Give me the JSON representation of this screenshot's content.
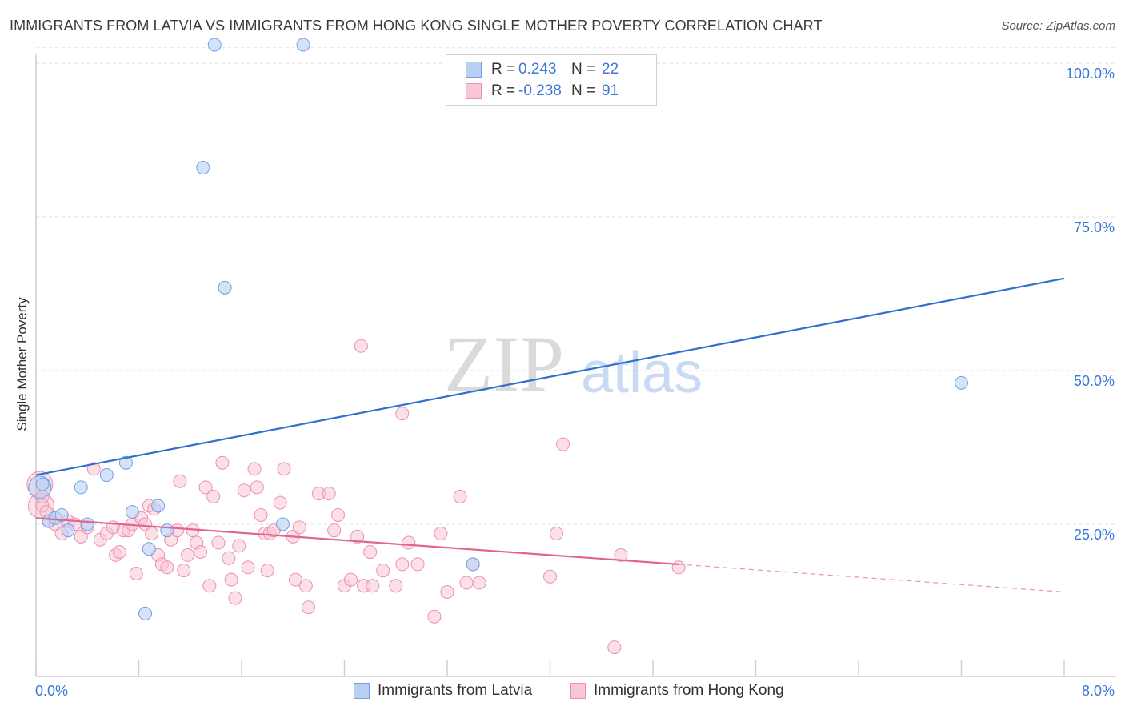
{
  "title": "IMMIGRANTS FROM LATVIA VS IMMIGRANTS FROM HONG KONG SINGLE MOTHER POVERTY CORRELATION CHART",
  "source": "Source: ZipAtlas.com",
  "watermark": {
    "zip": "ZIP",
    "atlas": "atlas"
  },
  "legend": {
    "rows": [
      {
        "r_label": "R =",
        "r_value": "0.243",
        "n_label": "N =",
        "n_value": "22"
      },
      {
        "r_label": "R =",
        "r_value": "-0.238",
        "n_label": "N =",
        "n_value": "91"
      }
    ]
  },
  "chart_data": {
    "type": "scatter",
    "ylabel": "Single Mother Poverty",
    "xlim": [
      0,
      8
    ],
    "ylim": [
      0,
      105
    ],
    "x_tick_labels": [
      "0.0%",
      "8.0%"
    ],
    "y_ticks": [
      25,
      50,
      75,
      100
    ],
    "y_tick_labels": [
      "25.0%",
      "50.0%",
      "75.0%",
      "100.0%"
    ],
    "grid": true,
    "legend_position": "top-center",
    "colors": {
      "latvia": "#6fa0e6",
      "latvia_line": "#2f6fce",
      "hongkong": "#ef8fb0",
      "hongkong_line": "#e0648f"
    },
    "series": [
      {
        "name": "Immigrants from Latvia",
        "trend": {
          "x": [
            0,
            8
          ],
          "y": [
            33,
            65
          ]
        },
        "points": [
          [
            0.05,
            31.5
          ],
          [
            0.1,
            25.5
          ],
          [
            0.15,
            26
          ],
          [
            0.2,
            26.5
          ],
          [
            0.25,
            24
          ],
          [
            0.35,
            31
          ],
          [
            0.4,
            25
          ],
          [
            0.55,
            33
          ],
          [
            0.7,
            35
          ],
          [
            0.75,
            27
          ],
          [
            0.85,
            10.5
          ],
          [
            0.88,
            21
          ],
          [
            0.95,
            28
          ],
          [
            1.02,
            24
          ],
          [
            1.3,
            83
          ],
          [
            1.39,
            103
          ],
          [
            1.47,
            63.5
          ],
          [
            1.92,
            25
          ],
          [
            2.08,
            103
          ],
          [
            3.4,
            18.5
          ],
          [
            7.2,
            48
          ]
        ],
        "big_points": [
          [
            0.03,
            31
          ]
        ]
      },
      {
        "name": "Immigrants from Hong Kong",
        "trend": {
          "x": [
            0,
            5
          ],
          "y": [
            26,
            18.5
          ]
        },
        "trend_ext": {
          "x": [
            5,
            8
          ],
          "y": [
            18.5,
            14
          ]
        },
        "points": [
          [
            0.05,
            28
          ],
          [
            0.1,
            25.5
          ],
          [
            0.15,
            25
          ],
          [
            0.2,
            23.5
          ],
          [
            0.25,
            25.5
          ],
          [
            0.3,
            25
          ],
          [
            0.35,
            23
          ],
          [
            0.4,
            24.5
          ],
          [
            0.45,
            34
          ],
          [
            0.5,
            22.5
          ],
          [
            0.55,
            23.5
          ],
          [
            0.6,
            24.5
          ],
          [
            0.62,
            20
          ],
          [
            0.65,
            20.5
          ],
          [
            0.68,
            24
          ],
          [
            0.72,
            24
          ],
          [
            0.75,
            25
          ],
          [
            0.78,
            17
          ],
          [
            0.82,
            26
          ],
          [
            0.85,
            25
          ],
          [
            0.88,
            28
          ],
          [
            0.9,
            23.5
          ],
          [
            0.92,
            27.5
          ],
          [
            0.95,
            20
          ],
          [
            0.98,
            18.5
          ],
          [
            1.02,
            18
          ],
          [
            1.05,
            22.5
          ],
          [
            1.1,
            24
          ],
          [
            1.12,
            32
          ],
          [
            1.15,
            17.5
          ],
          [
            1.18,
            20
          ],
          [
            1.22,
            24
          ],
          [
            1.25,
            22
          ],
          [
            1.28,
            20.5
          ],
          [
            1.32,
            31
          ],
          [
            1.35,
            15
          ],
          [
            1.38,
            29.5
          ],
          [
            1.42,
            22
          ],
          [
            1.45,
            35
          ],
          [
            1.5,
            19.5
          ],
          [
            1.52,
            16
          ],
          [
            1.55,
            13
          ],
          [
            1.58,
            21.5
          ],
          [
            1.62,
            30.5
          ],
          [
            1.65,
            18
          ],
          [
            1.7,
            34
          ],
          [
            1.72,
            31
          ],
          [
            1.75,
            26.5
          ],
          [
            1.78,
            23.5
          ],
          [
            1.8,
            17.5
          ],
          [
            1.82,
            23.5
          ],
          [
            1.85,
            24
          ],
          [
            1.9,
            28.5
          ],
          [
            1.93,
            34
          ],
          [
            2.0,
            23
          ],
          [
            2.02,
            16
          ],
          [
            2.05,
            24.5
          ],
          [
            2.1,
            15
          ],
          [
            2.12,
            11.5
          ],
          [
            2.2,
            30
          ],
          [
            2.28,
            30
          ],
          [
            2.32,
            24
          ],
          [
            2.35,
            26.5
          ],
          [
            2.4,
            15
          ],
          [
            2.45,
            16
          ],
          [
            2.5,
            23
          ],
          [
            2.55,
            15
          ],
          [
            2.6,
            20.5
          ],
          [
            2.62,
            15
          ],
          [
            2.7,
            17.5
          ],
          [
            2.8,
            15
          ],
          [
            2.85,
            18.5
          ],
          [
            2.9,
            22
          ],
          [
            2.97,
            18.5
          ],
          [
            3.1,
            10
          ],
          [
            3.15,
            23.5
          ],
          [
            3.2,
            14
          ],
          [
            3.3,
            29.5
          ],
          [
            3.35,
            15.5
          ],
          [
            3.4,
            18.5
          ],
          [
            3.45,
            15.5
          ],
          [
            4.0,
            16.5
          ],
          [
            4.05,
            23.5
          ],
          [
            4.1,
            38
          ],
          [
            4.5,
            5
          ],
          [
            4.55,
            20
          ],
          [
            5.0,
            18
          ],
          [
            2.53,
            54
          ],
          [
            2.85,
            43
          ],
          [
            0.05,
            29.5
          ],
          [
            0.08,
            27
          ]
        ],
        "big_points": [
          [
            0.03,
            31.5
          ],
          [
            0.04,
            28
          ]
        ]
      }
    ]
  }
}
